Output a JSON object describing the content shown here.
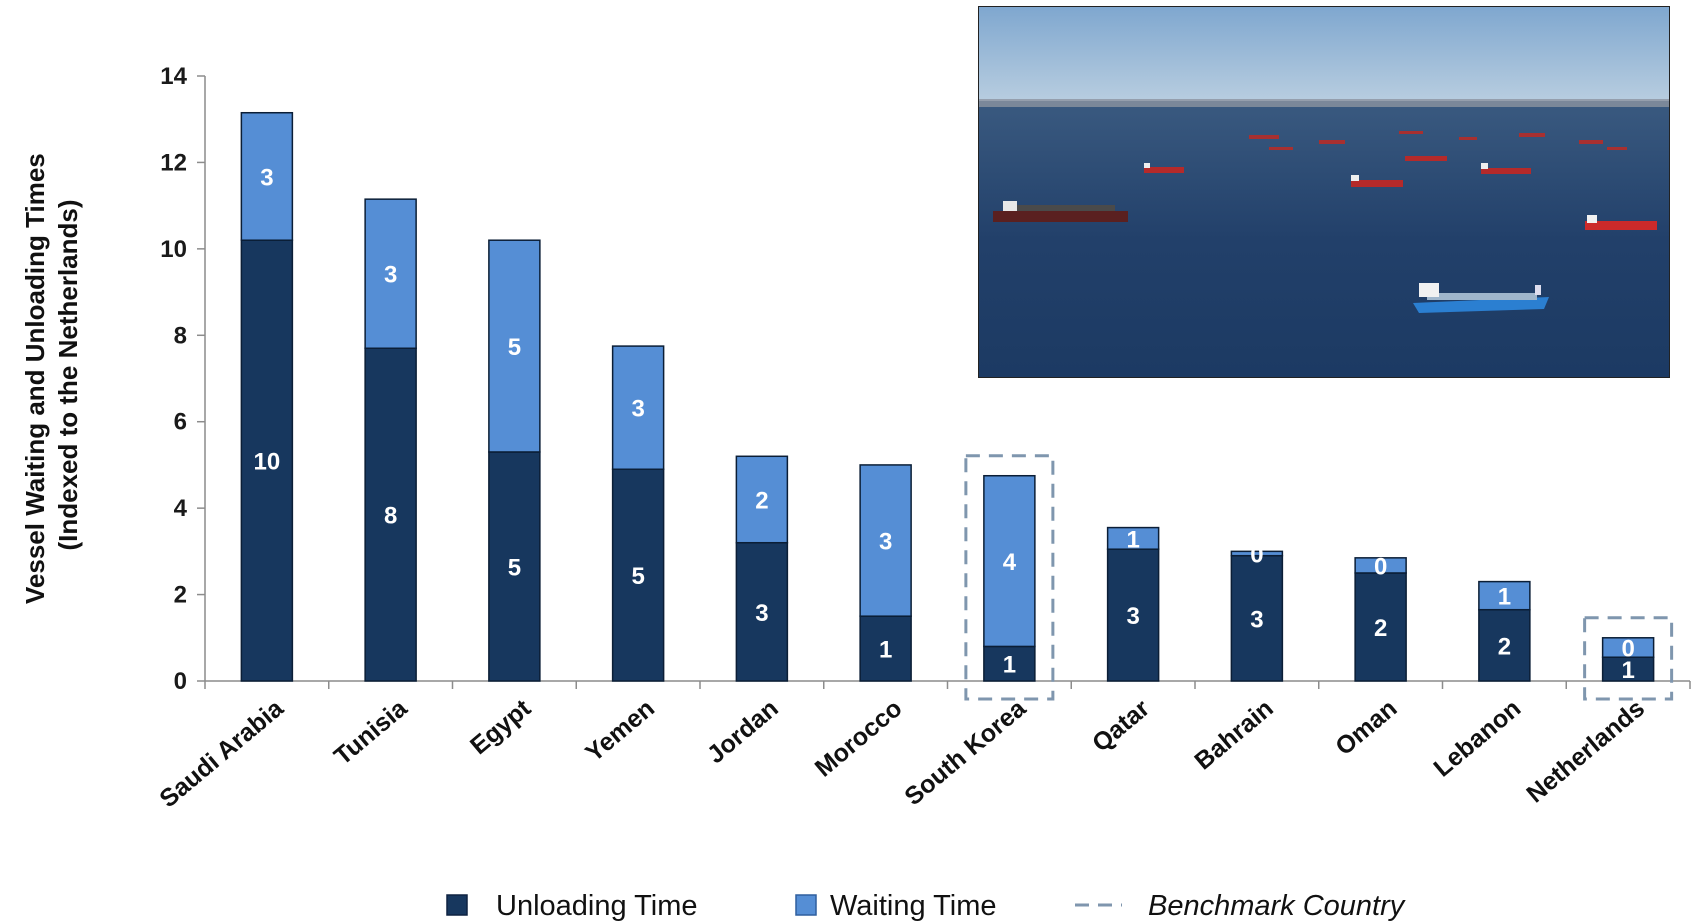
{
  "chart_data": {
    "type": "bar",
    "stacked": true,
    "title": "",
    "ylabel": "Vessel Waiting and Unloading Times (Indexed to the Netherlands)",
    "ylabel_lines": [
      "Vessel Waiting and Unloading Times",
      "(Indexed to the Netherlands)"
    ],
    "xlabel": "",
    "ylim": [
      0,
      14
    ],
    "yticks": [
      0,
      2,
      4,
      6,
      8,
      10,
      12,
      14
    ],
    "grid": false,
    "legend_position": "bottom",
    "categories": [
      "Saudi Arabia",
      "Tunisia",
      "Egypt",
      "Yemen",
      "Jordan",
      "Morocco",
      "South Korea",
      "Qatar",
      "Bahrain",
      "Oman",
      "Lebanon",
      "Netherlands"
    ],
    "series": [
      {
        "name": "Unloading Time",
        "color": "#17375E",
        "values": [
          10.2,
          7.7,
          5.3,
          4.9,
          3.2,
          1.5,
          0.8,
          3.05,
          2.9,
          2.5,
          1.65,
          0.55
        ],
        "labels": [
          "10",
          "8",
          "5",
          "5",
          "3",
          "1",
          "1",
          "3",
          "3",
          "2",
          "2",
          "1"
        ]
      },
      {
        "name": "Waiting Time",
        "color": "#558ED5",
        "values": [
          2.95,
          3.45,
          4.9,
          2.85,
          2.0,
          3.5,
          3.95,
          0.5,
          0.1,
          0.35,
          0.65,
          0.45
        ],
        "labels": [
          "3",
          "3",
          "5",
          "3",
          "2",
          "3",
          "4",
          "1",
          "0",
          "0",
          "1",
          "0"
        ]
      }
    ],
    "benchmark_legend": "Benchmark Country",
    "benchmark_categories": [
      "South Korea",
      "Netherlands"
    ]
  },
  "colors": {
    "unloading": "#17375E",
    "waiting": "#558ED5",
    "benchmark": "#7F96AE"
  },
  "image": {
    "kind": "photo",
    "subject": "aerial photo of tanker ships anchored at sea"
  }
}
